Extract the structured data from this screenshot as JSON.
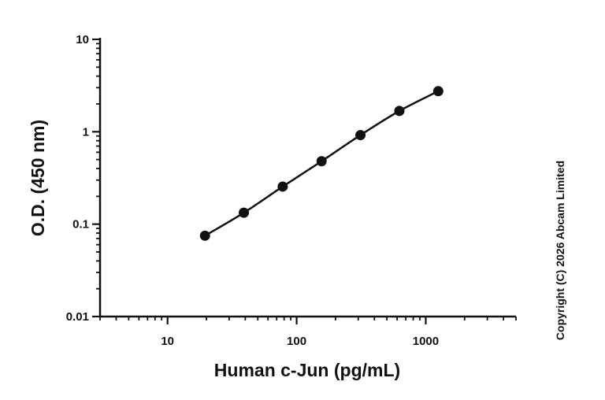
{
  "chart_data": {
    "type": "line",
    "xlabel": "Human c-Jun (pg/mL)",
    "ylabel": "O.D. (450 nm)",
    "x_scale": "log",
    "y_scale": "log",
    "xlim": [
      3,
      5000
    ],
    "ylim": [
      0.01,
      10
    ],
    "x_ticks": [
      10,
      100,
      1000
    ],
    "x_tick_labels": [
      "10",
      "100",
      "1000"
    ],
    "y_ticks": [
      0.01,
      0.1,
      1,
      10
    ],
    "y_tick_labels": [
      "0.01",
      "0.1",
      "1",
      "10"
    ],
    "grid": false,
    "legend": "none",
    "series": [
      {
        "x": [
          19.5,
          39,
          78,
          156,
          312,
          625,
          1250
        ],
        "y": [
          0.075,
          0.133,
          0.255,
          0.48,
          0.92,
          1.68,
          2.75
        ],
        "color": "#111111",
        "marker": "circle"
      }
    ]
  },
  "copyright": "Copyright (C) 2026 Abcam Limited"
}
